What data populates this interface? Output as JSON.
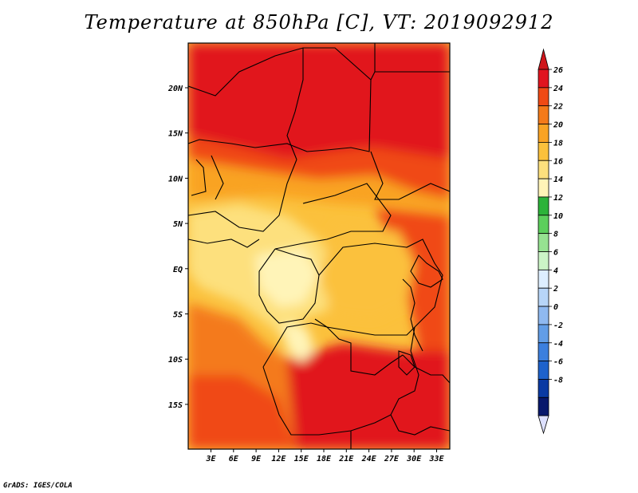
{
  "title": "Temperature at 850hPa [C], VT: 2019092912",
  "footer": "GrADS: IGES/COLA",
  "y_axis_labels": [
    "20N",
    "15N",
    "10N",
    "5N",
    "EQ",
    "5S",
    "10S",
    "15S"
  ],
  "x_axis_labels": [
    "3E",
    "6E",
    "9E",
    "12E",
    "15E",
    "18E",
    "21E",
    "24E",
    "27E",
    "30E",
    "33E"
  ],
  "colorbar": {
    "labels": [
      "26",
      "24",
      "22",
      "20",
      "18",
      "16",
      "14",
      "12",
      "10",
      "8",
      "6",
      "4",
      "2",
      "0",
      "-2",
      "-4",
      "-6",
      "-8"
    ],
    "colors": [
      "#e1141f",
      "#f04a15",
      "#f47a1a",
      "#f9a324",
      "#fbc13c",
      "#fde07d",
      "#fff4b8",
      "#2cb33a",
      "#5ccf5c",
      "#96e291",
      "#ccf5c7",
      "#ddeeff",
      "#b7d5f8",
      "#8fb9f0",
      "#629de6",
      "#3c7fde",
      "#1e62cc",
      "#0a3aa3",
      "#08186c"
    ],
    "over_color": "#d0161b",
    "under_color": "#dde0ff"
  }
}
